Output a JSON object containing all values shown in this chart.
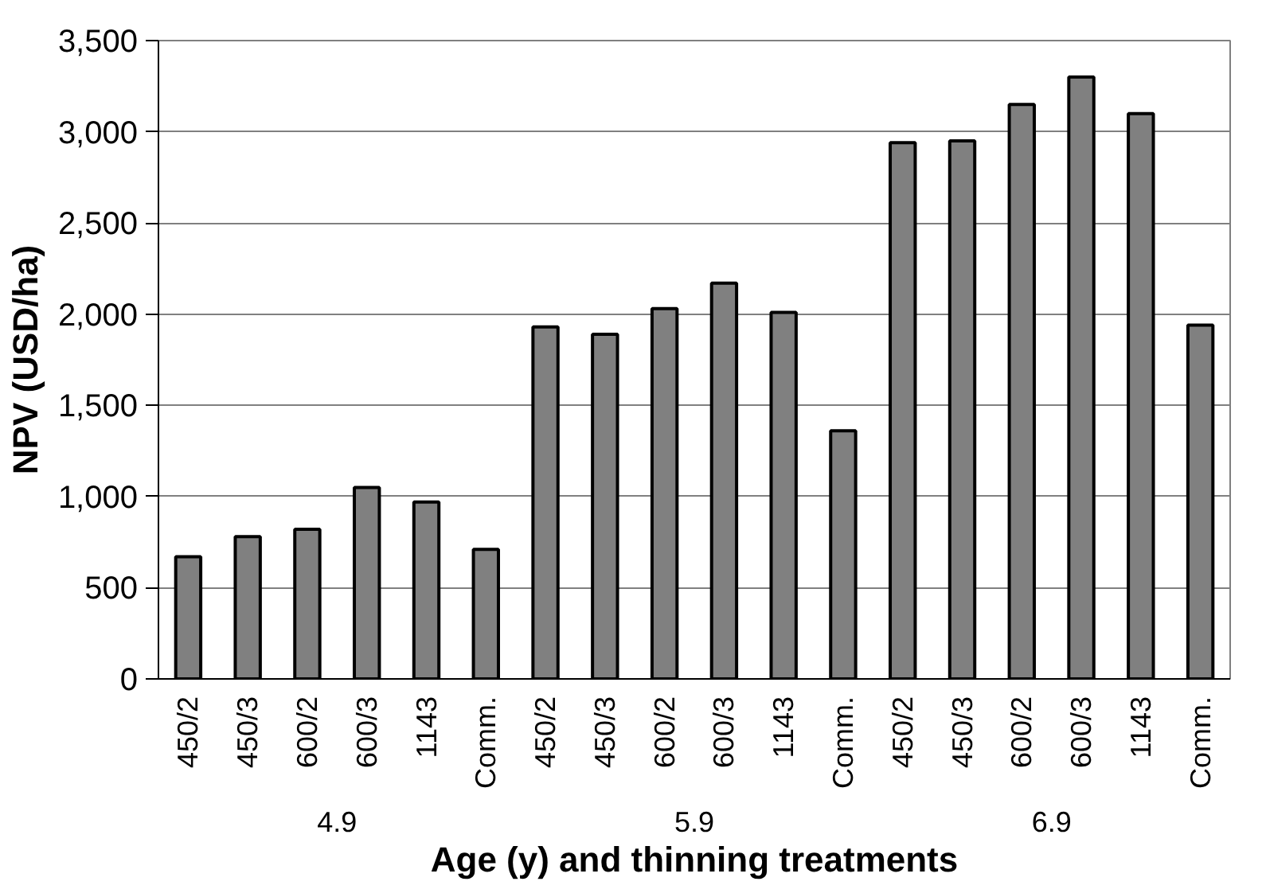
{
  "chart_data": {
    "type": "bar",
    "xlabel": "Age (y) and thinning treatments",
    "ylabel": "NPV (USD/ha)",
    "categories": [
      "450/2",
      "450/3",
      "600/2",
      "600/3",
      "1143",
      "Comm.",
      "450/2",
      "450/3",
      "600/2",
      "600/3",
      "1143",
      "Comm.",
      "450/2",
      "450/3",
      "600/2",
      "600/3",
      "1143",
      "Comm."
    ],
    "values": [
      670,
      780,
      820,
      1050,
      970,
      710,
      1930,
      1890,
      2030,
      2170,
      2010,
      1360,
      2940,
      2950,
      3150,
      3300,
      3100,
      1940
    ],
    "color": "#808080",
    "annotations": [
      "4.9",
      "5.9",
      "6.9"
    ],
    "ylim": [
      0,
      3500
    ],
    "yticks": [
      0,
      500,
      {
        "value": 1000,
        "label": "1,000"
      },
      {
        "value": 1500,
        "label": "1,500"
      },
      {
        "value": 2000,
        "label": "2,000"
      },
      {
        "value": 2500,
        "label": "2,500"
      },
      {
        "value": 3000,
        "label": "3,000"
      },
      {
        "value": 3500,
        "label": "3,500"
      }
    ],
    "grid": "y"
  }
}
